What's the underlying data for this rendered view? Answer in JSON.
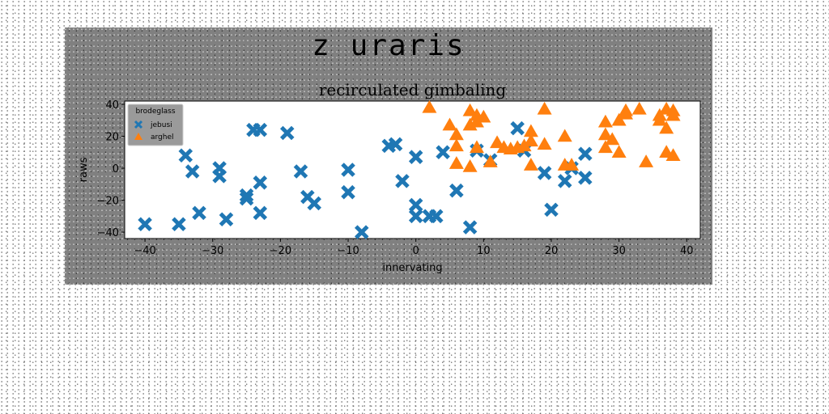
{
  "figure": {
    "suptitle": "z uraris"
  },
  "chart_data": {
    "type": "scatter",
    "title": "recirculated gimbaling",
    "xlabel": "innervating",
    "ylabel": "raws",
    "xlim": [
      -43,
      42
    ],
    "ylim": [
      -44,
      42
    ],
    "xticks": [
      -40,
      -30,
      -20,
      -10,
      0,
      10,
      20,
      30,
      40
    ],
    "yticks": [
      -40,
      -20,
      0,
      20,
      40
    ],
    "xtick_labels": [
      "−40",
      "−30",
      "−20",
      "−10",
      "0",
      "10",
      "20",
      "30",
      "40"
    ],
    "ytick_labels": [
      "−40",
      "−20",
      "0",
      "20",
      "40"
    ],
    "grid": false,
    "legend": {
      "title": "brodeglass",
      "placement": "top-left"
    },
    "series": [
      {
        "name": "jebusi",
        "marker": "x",
        "color": "#1f77b4",
        "points": [
          [
            -40,
            -35
          ],
          [
            -35,
            -35
          ],
          [
            -34,
            8
          ],
          [
            -33,
            -2
          ],
          [
            -32,
            -28
          ],
          [
            -29,
            0
          ],
          [
            -29,
            -5
          ],
          [
            -28,
            -32
          ],
          [
            -25,
            -17
          ],
          [
            -25,
            -19
          ],
          [
            -24,
            24
          ],
          [
            -23,
            24
          ],
          [
            -23,
            -9
          ],
          [
            -23,
            -28
          ],
          [
            -19,
            22
          ],
          [
            -17,
            -2
          ],
          [
            -16,
            -18
          ],
          [
            -15,
            -22
          ],
          [
            -10,
            -1
          ],
          [
            -10,
            -15
          ],
          [
            -8,
            -40
          ],
          [
            -4,
            14
          ],
          [
            -3,
            15
          ],
          [
            -2,
            -8
          ],
          [
            0,
            7
          ],
          [
            0,
            -23
          ],
          [
            0,
            -30
          ],
          [
            2,
            -30
          ],
          [
            3,
            -30
          ],
          [
            4,
            10
          ],
          [
            6,
            -14
          ],
          [
            8,
            -37
          ],
          [
            9,
            11
          ],
          [
            11,
            5
          ],
          [
            15,
            25
          ],
          [
            16,
            11
          ],
          [
            19,
            -3
          ],
          [
            20,
            -26
          ],
          [
            22,
            -8
          ],
          [
            23,
            0
          ],
          [
            25,
            9
          ],
          [
            25,
            -6
          ]
        ]
      },
      {
        "name": "arghel",
        "marker": "^",
        "color": "#ff7f0e",
        "points": [
          [
            2,
            38
          ],
          [
            5,
            27
          ],
          [
            6,
            21
          ],
          [
            6,
            14
          ],
          [
            6,
            3
          ],
          [
            8,
            36
          ],
          [
            8,
            1
          ],
          [
            8,
            27
          ],
          [
            9,
            29
          ],
          [
            9,
            33
          ],
          [
            10,
            32
          ],
          [
            9,
            13
          ],
          [
            11,
            4
          ],
          [
            12,
            16
          ],
          [
            13,
            13
          ],
          [
            14,
            12
          ],
          [
            15,
            13
          ],
          [
            16,
            14
          ],
          [
            17,
            23
          ],
          [
            17,
            17
          ],
          [
            17,
            2
          ],
          [
            19,
            37
          ],
          [
            19,
            15
          ],
          [
            22,
            20
          ],
          [
            22,
            2
          ],
          [
            23,
            2
          ],
          [
            28,
            29
          ],
          [
            28,
            21
          ],
          [
            28,
            13
          ],
          [
            29,
            18
          ],
          [
            30,
            30
          ],
          [
            30,
            10
          ],
          [
            31,
            36
          ],
          [
            31,
            34
          ],
          [
            33,
            37
          ],
          [
            34,
            4
          ],
          [
            36,
            33
          ],
          [
            36,
            30
          ],
          [
            37,
            37
          ],
          [
            37,
            10
          ],
          [
            37,
            25
          ],
          [
            38,
            8
          ],
          [
            38,
            36
          ],
          [
            38,
            33
          ]
        ]
      }
    ]
  }
}
